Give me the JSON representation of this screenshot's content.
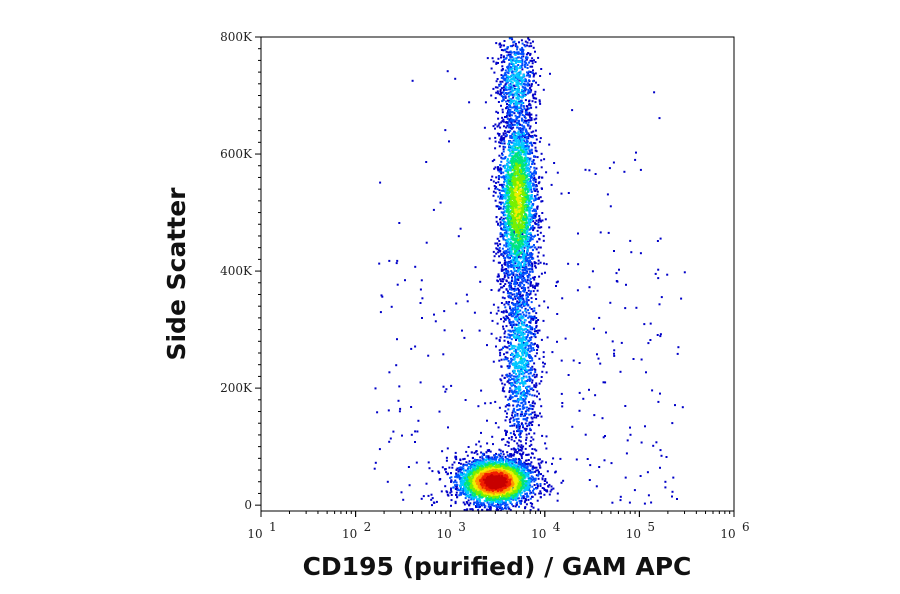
{
  "chart_data": {
    "type": "scatter",
    "plot_style": "density-colored dot plot (flow cytometry)",
    "xlabel": "CD195 (purified) / GAM APC",
    "ylabel": "Side Scatter",
    "x_scale": "log",
    "xlim": [
      10,
      1000000
    ],
    "ylim": [
      -10000,
      800000
    ],
    "x_ticks": [
      {
        "base": "10",
        "exp": "1",
        "value": 10
      },
      {
        "base": "10",
        "exp": "2",
        "value": 100
      },
      {
        "base": "10",
        "exp": "3",
        "value": 1000
      },
      {
        "base": "10",
        "exp": "4",
        "value": 10000
      },
      {
        "base": "10",
        "exp": "5",
        "value": 100000
      },
      {
        "base": "10",
        "exp": "6",
        "value": 1000000
      }
    ],
    "y_ticks": [
      {
        "label": "0",
        "value": 0
      },
      {
        "label": "200K",
        "value": 200000
      },
      {
        "label": "400K",
        "value": 400000
      },
      {
        "label": "600K",
        "value": 600000
      },
      {
        "label": "800K",
        "value": 800000
      }
    ],
    "grid": false,
    "density_colormap": [
      "#0000c8",
      "#0050ff",
      "#00c8ff",
      "#00e678",
      "#78f000",
      "#f0f000",
      "#ff9600",
      "#f01e00",
      "#c80000"
    ],
    "populations": [
      {
        "x_center": 3000,
        "y_center": 40000,
        "x_spread_log10": 0.2,
        "y_spread": 20000,
        "count": 3600,
        "peak_density": "high"
      },
      {
        "x_center": 5200,
        "y_center": 520000,
        "x_spread_log10": 0.1,
        "y_spread": 80000,
        "count": 2600,
        "peak_density": "medium"
      },
      {
        "x_center": 5500,
        "y_center": 260000,
        "x_spread_log10": 0.1,
        "y_spread": 90000,
        "count": 1200,
        "peak_density": "low"
      },
      {
        "x_center": 5000,
        "y_center": 720000,
        "x_spread_log10": 0.1,
        "y_spread": 50000,
        "count": 700,
        "peak_density": "low"
      }
    ]
  }
}
